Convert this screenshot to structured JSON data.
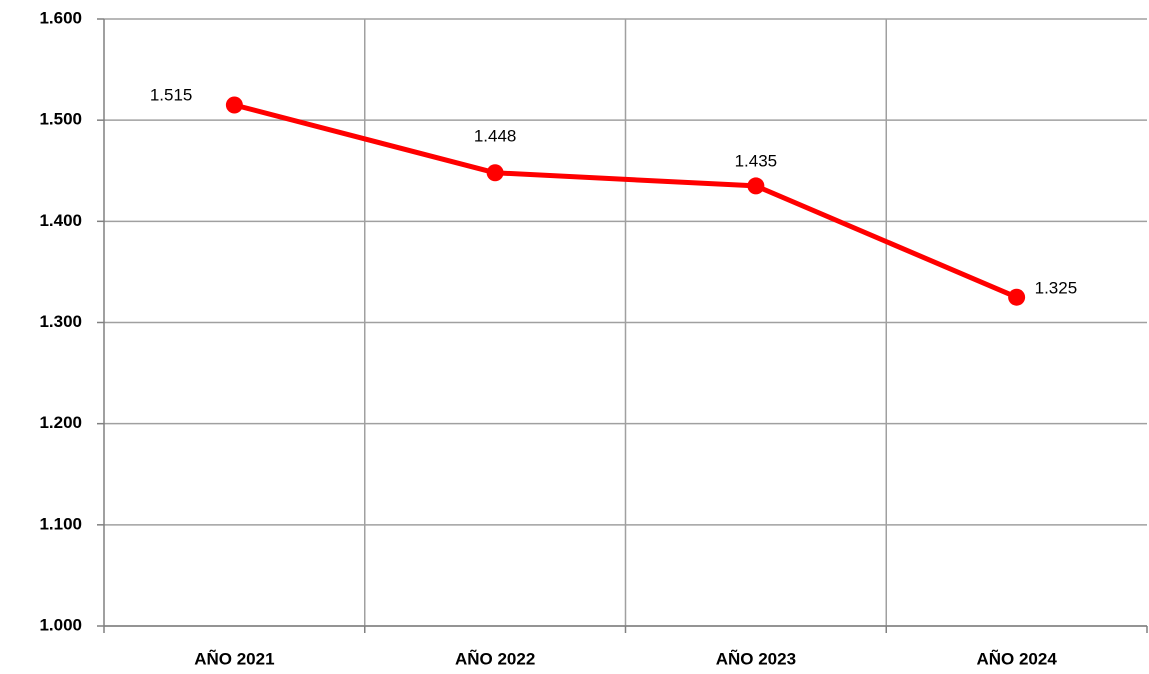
{
  "chart_data": {
    "type": "line",
    "categories": [
      "AÑO 2021",
      "AÑO 2022",
      "AÑO 2023",
      "AÑO 2024"
    ],
    "series": [
      {
        "color": "#ff0000",
        "values": [
          1515,
          1448,
          1435,
          1325
        ],
        "value_labels": [
          "1.515",
          "1.448",
          "1.435",
          "1.325"
        ]
      }
    ],
    "ylim": [
      1000,
      1600
    ],
    "yticks": [
      {
        "value": 1000,
        "label": "1.000"
      },
      {
        "value": 1100,
        "label": "1.100"
      },
      {
        "value": 1200,
        "label": "1.200"
      },
      {
        "value": 1300,
        "label": "1.300"
      },
      {
        "value": 1400,
        "label": "1.400"
      },
      {
        "value": 1500,
        "label": "1.500"
      },
      {
        "value": 1600,
        "label": "1.600"
      }
    ],
    "grid": true
  }
}
